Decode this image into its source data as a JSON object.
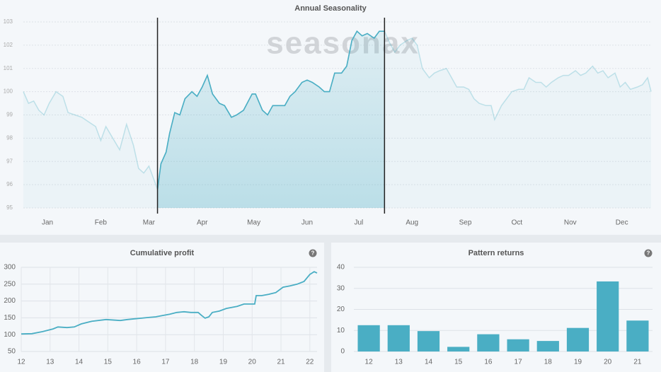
{
  "chart_data": [
    {
      "type": "line",
      "title": "Annual Seasonality",
      "watermark": "seasonax",
      "color": "#4aaec4",
      "x": [
        0,
        3,
        6,
        9,
        12,
        15,
        19,
        23,
        26,
        30,
        34,
        38,
        42,
        45,
        48,
        52,
        56,
        60,
        64,
        67,
        70,
        73,
        75,
        78,
        80,
        83,
        85,
        88,
        91,
        94,
        98,
        101,
        104,
        107,
        110,
        114,
        117,
        121,
        124,
        128,
        133,
        135,
        139,
        142,
        145,
        149,
        152,
        155,
        158,
        162,
        165,
        168,
        172,
        175,
        178,
        181,
        185,
        188,
        191,
        194,
        197,
        200,
        204,
        207,
        210,
        213,
        216,
        219,
        223,
        226,
        229,
        232,
        236,
        239,
        242,
        246,
        249,
        252,
        256,
        259,
        262,
        265,
        269,
        272,
        274,
        278,
        281,
        284,
        288,
        291,
        294,
        298,
        301,
        304,
        307,
        311,
        314,
        317,
        321,
        324,
        327,
        331,
        334,
        337,
        340,
        344,
        347,
        350,
        353,
        357,
        360,
        363,
        365
      ],
      "values": [
        100.0,
        99.5,
        99.6,
        99.2,
        99.0,
        99.5,
        100.0,
        99.8,
        99.1,
        99.0,
        98.9,
        98.7,
        98.5,
        97.9,
        98.5,
        98.0,
        97.5,
        98.6,
        97.7,
        96.7,
        96.5,
        96.8,
        96.4,
        95.8,
        96.9,
        97.4,
        98.2,
        99.1,
        99.0,
        99.7,
        100.0,
        99.8,
        100.2,
        100.7,
        99.9,
        99.5,
        99.4,
        98.9,
        99.0,
        99.2,
        99.9,
        99.9,
        99.2,
        99.0,
        99.4,
        99.4,
        99.4,
        99.8,
        100.0,
        100.4,
        100.5,
        100.4,
        100.2,
        100.0,
        100.0,
        100.8,
        100.8,
        101.1,
        102.2,
        102.6,
        102.4,
        102.5,
        102.3,
        102.6,
        102.6,
        102.1,
        101.7,
        102.0,
        102.2,
        102.3,
        102.0,
        101.0,
        100.6,
        100.8,
        100.9,
        101.0,
        100.6,
        100.2,
        100.2,
        100.1,
        99.7,
        99.5,
        99.4,
        99.4,
        98.8,
        99.4,
        99.7,
        100.0,
        100.1,
        100.1,
        100.6,
        100.4,
        100.4,
        100.2,
        100.4,
        100.6,
        100.7,
        100.7,
        100.9,
        100.7,
        100.8,
        101.1,
        100.8,
        100.9,
        100.6,
        100.8,
        100.2,
        100.4,
        100.1,
        100.2,
        100.3,
        100.6,
        100.0
      ],
      "xlim": [
        0,
        365
      ],
      "xticks": [
        {
          "value": 14,
          "label": "Jan"
        },
        {
          "value": 45,
          "label": "Feb"
        },
        {
          "value": 73,
          "label": "Mar"
        },
        {
          "value": 104,
          "label": "Apr"
        },
        {
          "value": 134,
          "label": "May"
        },
        {
          "value": 165,
          "label": "Jun"
        },
        {
          "value": 195,
          "label": "Jul"
        },
        {
          "value": 226,
          "label": "Aug"
        },
        {
          "value": 257,
          "label": "Sep"
        },
        {
          "value": 287,
          "label": "Oct"
        },
        {
          "value": 318,
          "label": "Nov"
        },
        {
          "value": 348,
          "label": "Dec"
        }
      ],
      "ylim": [
        95,
        103
      ],
      "yticks": [
        95,
        96,
        97,
        98,
        99,
        100,
        101,
        102,
        103
      ],
      "grid": true,
      "highlight": [
        78,
        210
      ]
    },
    {
      "type": "line",
      "title": "Cumulative profit",
      "help_icon": "?",
      "color": "#4aaec4",
      "x": [
        12.0,
        12.37,
        12.74,
        13.1,
        13.27,
        13.59,
        13.84,
        14.08,
        14.45,
        14.94,
        15.43,
        15.68,
        15.92,
        16.17,
        16.41,
        16.66,
        16.9,
        17.15,
        17.39,
        17.64,
        17.88,
        18.13,
        18.25,
        18.37,
        18.5,
        18.62,
        18.86,
        19.11,
        19.48,
        19.72,
        19.97,
        20.09,
        20.14,
        20.33,
        20.58,
        20.82,
        21.07,
        21.31,
        21.56,
        21.8,
        22.0,
        22.15,
        22.25
      ],
      "values": [
        102,
        103,
        109,
        117,
        123,
        121,
        123,
        132,
        140,
        145,
        142,
        145,
        147,
        149,
        151,
        153,
        157,
        161,
        166,
        168,
        166,
        166,
        157,
        149,
        153,
        166,
        170,
        178,
        184,
        191,
        191,
        191,
        216,
        216,
        220,
        225,
        241,
        245,
        250,
        258,
        279,
        287,
        283
      ],
      "xlim": [
        12,
        22.25
      ],
      "xticks": [
        12,
        13,
        14,
        15,
        16,
        17,
        18,
        19,
        20,
        21,
        22
      ],
      "ylim": [
        50,
        300
      ],
      "yticks": [
        50,
        100,
        150,
        200,
        250,
        300
      ],
      "grid": true
    },
    {
      "type": "bar",
      "title": "Pattern returns",
      "help_icon": "?",
      "color": "#4aaec4",
      "categories": [
        "12",
        "13",
        "14",
        "15",
        "16",
        "17",
        "18",
        "19",
        "20",
        "21"
      ],
      "values": [
        12.5,
        12.5,
        9.7,
        2.2,
        8.2,
        5.8,
        5.0,
        11.2,
        33.3,
        14.7
      ],
      "ylim": [
        0,
        40
      ],
      "yticks": [
        0,
        10,
        20,
        30,
        40
      ],
      "grid": true
    }
  ]
}
